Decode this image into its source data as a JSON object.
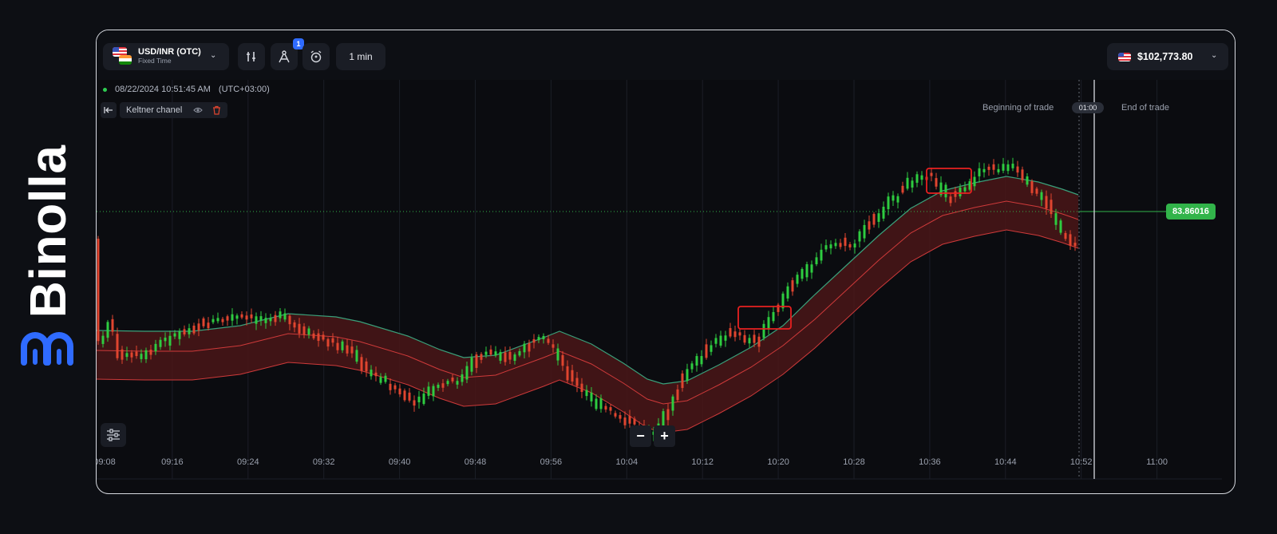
{
  "brand": {
    "name": "Binolla",
    "logo_icon": "binolla-logo-icon"
  },
  "toolbar": {
    "pair": "USD/INR (OTC)",
    "pair_sub": "Fixed Time",
    "drawings_badge": "1",
    "timeframe": "1 min",
    "balance": "$102,773.80"
  },
  "chart": {
    "timestamp": "08/22/2024",
    "time": "10:51:45 AM",
    "timezone": "(UTC+03:00)",
    "indicator": "Keltner chanel",
    "beginning_label": "Beginning of trade",
    "end_label": "End of trade",
    "timer": "01:00",
    "current_price": "83.86016",
    "zoom_out": "−",
    "zoom_in": "+"
  },
  "colors": {
    "up": "#2ecc40",
    "down": "#e0452f",
    "band_fill": "#4a1618",
    "band_edge": "#cf3a3a",
    "upper_edge": "#3aa07a",
    "price_line": "#32b44a",
    "highlight": "#e82020"
  },
  "chart_data": {
    "type": "candlestick",
    "x_ticks": [
      "09:08",
      "09:16",
      "09:24",
      "09:32",
      "09:40",
      "09:48",
      "09:56",
      "10:04",
      "10:12",
      "10:20",
      "10:28",
      "10:36",
      "10:44",
      "10:52",
      "11:00"
    ],
    "overlays": [
      "Keltner chanel"
    ],
    "last_price": 83.86016,
    "candles_overview": [
      {
        "time": "09:08",
        "trend": "flat"
      },
      {
        "time": "09:32",
        "trend": "flat"
      },
      {
        "time": "09:40",
        "trend": "down"
      },
      {
        "time": "09:48",
        "trend": "up"
      },
      {
        "time": "10:04",
        "trend": "down"
      },
      {
        "time": "10:20",
        "trend": "up"
      },
      {
        "time": "10:36",
        "trend": "up"
      },
      {
        "time": "10:44",
        "trend": "flat"
      },
      {
        "time": "10:52",
        "trend": "down"
      }
    ]
  }
}
